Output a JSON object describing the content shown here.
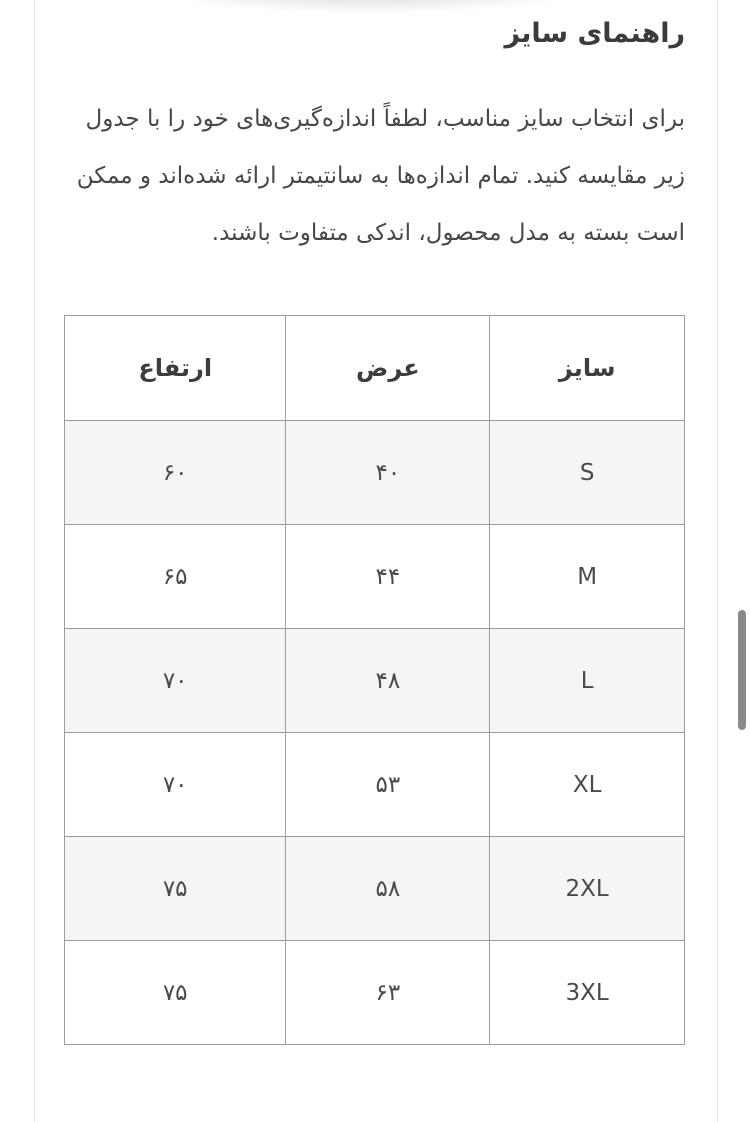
{
  "page": {
    "title": "راهنمای سایز",
    "description": "برای انتخاب سایز مناسب، لطفاً اندازه‌گیری‌های خود را با جدول زیر مقایسه کنید. تمام اندازه‌ها به سانتیمتر ارائه شده‌اند و ممکن است بسته به مدل محصول، اندکی متفاوت باشند."
  },
  "size_table": {
    "columns": {
      "size": "سایز",
      "width": "عرض",
      "height": "ارتفاع"
    },
    "rows": [
      {
        "size": "S",
        "width": "۴۰",
        "height": "۶۰"
      },
      {
        "size": "M",
        "width": "۴۴",
        "height": "۶۵"
      },
      {
        "size": "L",
        "width": "۴۸",
        "height": "۷۰"
      },
      {
        "size": "XL",
        "width": "۵۳",
        "height": "۷۰"
      },
      {
        "size": "2XL",
        "width": "۵۸",
        "height": "۷۵"
      },
      {
        "size": "3XL",
        "width": "۶۳",
        "height": "۷۵"
      }
    ]
  },
  "colors": {
    "heading_text": "#3b3b3b",
    "body_text": "#474747",
    "table_border": "#9c9c9c",
    "row_alt_background": "#f5f5f6",
    "card_border": "#e4e4e4",
    "scrollbar_thumb": "#8a8a8a"
  }
}
